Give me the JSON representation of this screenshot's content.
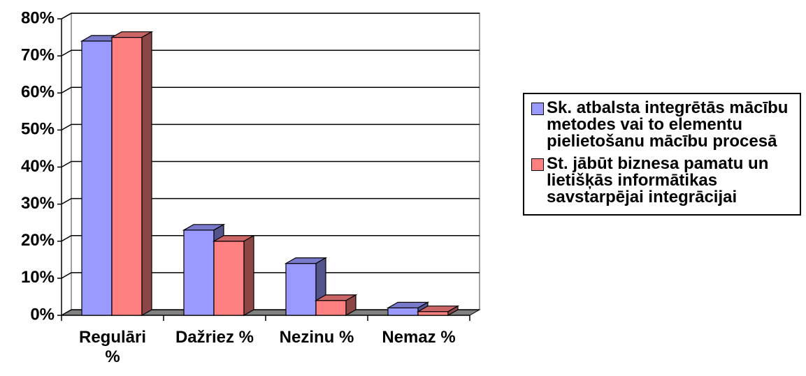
{
  "chart_data": {
    "type": "bar3d",
    "categories": [
      "Regulāri %",
      "Dažriez %",
      "Nezinu %",
      "Nemaz %"
    ],
    "series": [
      {
        "name": "Sk. atbalsta integrētās mācību metodes vai to elementu pielietošanu mācību procesā",
        "color": "#9999ff",
        "values": [
          74,
          23,
          14,
          2
        ]
      },
      {
        "name": "St. jābūt biznesa pamatu un lietišķās informātikas savstarpējai integrācijai",
        "color": "#ff8080",
        "values": [
          75,
          20,
          4,
          1
        ]
      }
    ],
    "ylim": [
      0,
      80
    ],
    "yticks": [
      {
        "value": 0,
        "label": "0%"
      },
      {
        "value": 10,
        "label": "10%"
      },
      {
        "value": 20,
        "label": "20%"
      },
      {
        "value": 30,
        "label": "30%"
      },
      {
        "value": 40,
        "label": "40%"
      },
      {
        "value": 50,
        "label": "50%"
      },
      {
        "value": 60,
        "label": "60%"
      },
      {
        "value": 70,
        "label": "70%"
      },
      {
        "value": 80,
        "label": "80%"
      }
    ],
    "grid": true,
    "legend": "right"
  }
}
